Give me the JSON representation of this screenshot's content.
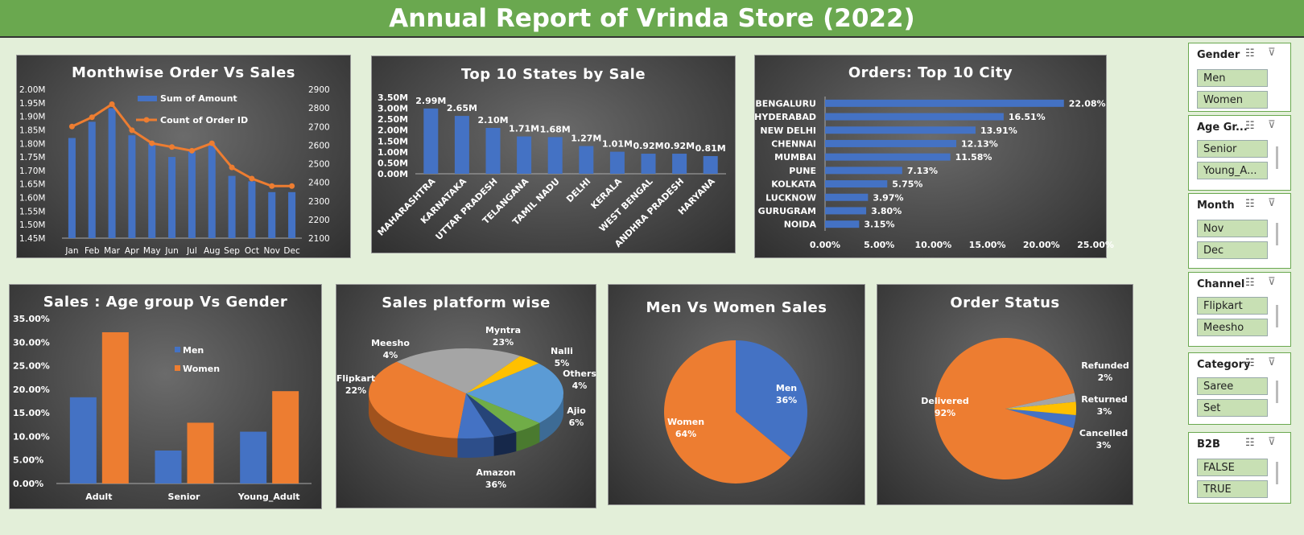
{
  "title": "Annual Report of Vrinda Store (2022)",
  "colors": {
    "blue": "#4472c4",
    "orange": "#ed7d31",
    "green": "#6aa84f"
  },
  "slicers": [
    {
      "name": "Gender",
      "items": [
        "Men",
        "Women"
      ]
    },
    {
      "name": "Age Gr...",
      "items": [
        "Senior",
        "Young_A..."
      ]
    },
    {
      "name": "Month",
      "items": [
        "Nov",
        "Dec"
      ]
    },
    {
      "name": "Channel",
      "items": [
        "Flipkart",
        "Meesho"
      ]
    },
    {
      "name": "Category",
      "items": [
        "Saree",
        "Set"
      ]
    },
    {
      "name": "B2B",
      "items": [
        "FALSE",
        "TRUE"
      ]
    }
  ],
  "icons": [
    "multi-select-icon",
    "clear-filter-icon"
  ],
  "chart_data": [
    {
      "type": "bar",
      "title": "Monthwise Order Vs Sales",
      "categories": [
        "Jan",
        "Feb",
        "Mar",
        "Apr",
        "May",
        "Jun",
        "Jul",
        "Aug",
        "Sep",
        "Oct",
        "Nov",
        "Dec"
      ],
      "series": [
        {
          "name": "Sum of Amount",
          "type": "bar",
          "axis": "left",
          "values": [
            1.82,
            1.88,
            1.93,
            1.83,
            1.8,
            1.75,
            1.77,
            1.8,
            1.68,
            1.66,
            1.62,
            1.62
          ]
        },
        {
          "name": "Count of Order ID",
          "type": "line",
          "axis": "right",
          "values": [
            2700,
            2750,
            2820,
            2680,
            2610,
            2590,
            2570,
            2610,
            2480,
            2420,
            2380,
            2380
          ]
        }
      ],
      "ylim": [
        1.45,
        2.0
      ],
      "yticks": [
        "1.45M",
        "1.50M",
        "1.55M",
        "1.60M",
        "1.65M",
        "1.70M",
        "1.75M",
        "1.80M",
        "1.85M",
        "1.90M",
        "1.95M",
        "2.00M"
      ],
      "y2lim": [
        2100,
        2900
      ],
      "y2ticks": [
        "2100",
        "2200",
        "2300",
        "2400",
        "2500",
        "2600",
        "2700",
        "2800",
        "2900"
      ]
    },
    {
      "type": "bar",
      "title": "Top 10 States by Sale",
      "categories": [
        "MAHARASHTRA",
        "KARNATAKA",
        "UTTAR PRADESH",
        "TELANGANA",
        "TAMIL NADU",
        "DELHI",
        "KERALA",
        "WEST BENGAL",
        "ANDHRA PRADESH",
        "HARYANA"
      ],
      "values": [
        2.99,
        2.65,
        2.1,
        1.71,
        1.68,
        1.27,
        1.01,
        0.92,
        0.92,
        0.81
      ],
      "labels": [
        "2.99M",
        "2.65M",
        "2.10M",
        "1.71M",
        "1.68M",
        "1.27M",
        "1.01M",
        "0.92M",
        "0.92M",
        "0.81M"
      ],
      "ylim": [
        0,
        3.5
      ],
      "yticks": [
        "0.00M",
        "0.50M",
        "1.00M",
        "1.50M",
        "2.00M",
        "2.50M",
        "3.00M",
        "3.50M"
      ]
    },
    {
      "type": "bar",
      "orientation": "horizontal",
      "title": "Orders: Top 10 City",
      "categories": [
        "BENGALURU",
        "HYDERABAD",
        "NEW DELHI",
        "CHENNAI",
        "MUMBAI",
        "PUNE",
        "KOLKATA",
        "LUCKNOW",
        "GURUGRAM",
        "NOIDA"
      ],
      "values": [
        22.08,
        16.51,
        13.91,
        12.13,
        11.58,
        7.13,
        5.75,
        3.97,
        3.8,
        3.15
      ],
      "labels": [
        "22.08%",
        "16.51%",
        "13.91%",
        "12.13%",
        "11.58%",
        "7.13%",
        "5.75%",
        "3.97%",
        "3.80%",
        "3.15%"
      ],
      "xlim": [
        0,
        25
      ],
      "xticks": [
        "0.00%",
        "5.00%",
        "10.00%",
        "15.00%",
        "20.00%",
        "25.00%"
      ]
    },
    {
      "type": "bar",
      "title": "Sales : Age group Vs Gender",
      "categories": [
        "Adult",
        "Senior",
        "Young_Adult"
      ],
      "series": [
        {
          "name": "Men",
          "values": [
            18.3,
            7.0,
            11.0
          ]
        },
        {
          "name": "Women",
          "values": [
            32.1,
            12.9,
            19.6
          ]
        }
      ],
      "ylim": [
        0,
        35
      ],
      "yticks": [
        "0.00%",
        "5.00%",
        "10.00%",
        "15.00%",
        "20.00%",
        "25.00%",
        "30.00%",
        "35.00%"
      ]
    },
    {
      "type": "pie",
      "title": "Sales platform wise",
      "slices": [
        {
          "label": "Amazon",
          "value": 36,
          "text": "36%"
        },
        {
          "label": "Flipkart",
          "value": 22,
          "text": "22%"
        },
        {
          "label": "Meesho",
          "value": 4,
          "text": "4%"
        },
        {
          "label": "Myntra",
          "value": 23,
          "text": "23%"
        },
        {
          "label": "Nalli",
          "value": 5,
          "text": "5%"
        },
        {
          "label": "Others",
          "value": 4,
          "text": "4%"
        },
        {
          "label": "Ajio",
          "value": 6,
          "text": "6%"
        }
      ]
    },
    {
      "type": "pie",
      "title": "Men Vs Women Sales",
      "slices": [
        {
          "label": "Men",
          "value": 36,
          "text": "36%"
        },
        {
          "label": "Women",
          "value": 64,
          "text": "64%"
        }
      ]
    },
    {
      "type": "pie",
      "title": "Order Status",
      "slices": [
        {
          "label": "Delivered",
          "value": 92,
          "text": "92%"
        },
        {
          "label": "Refunded",
          "value": 2,
          "text": "2%"
        },
        {
          "label": "Returned",
          "value": 3,
          "text": "3%"
        },
        {
          "label": "Cancelled",
          "value": 3,
          "text": "3%"
        }
      ]
    }
  ]
}
